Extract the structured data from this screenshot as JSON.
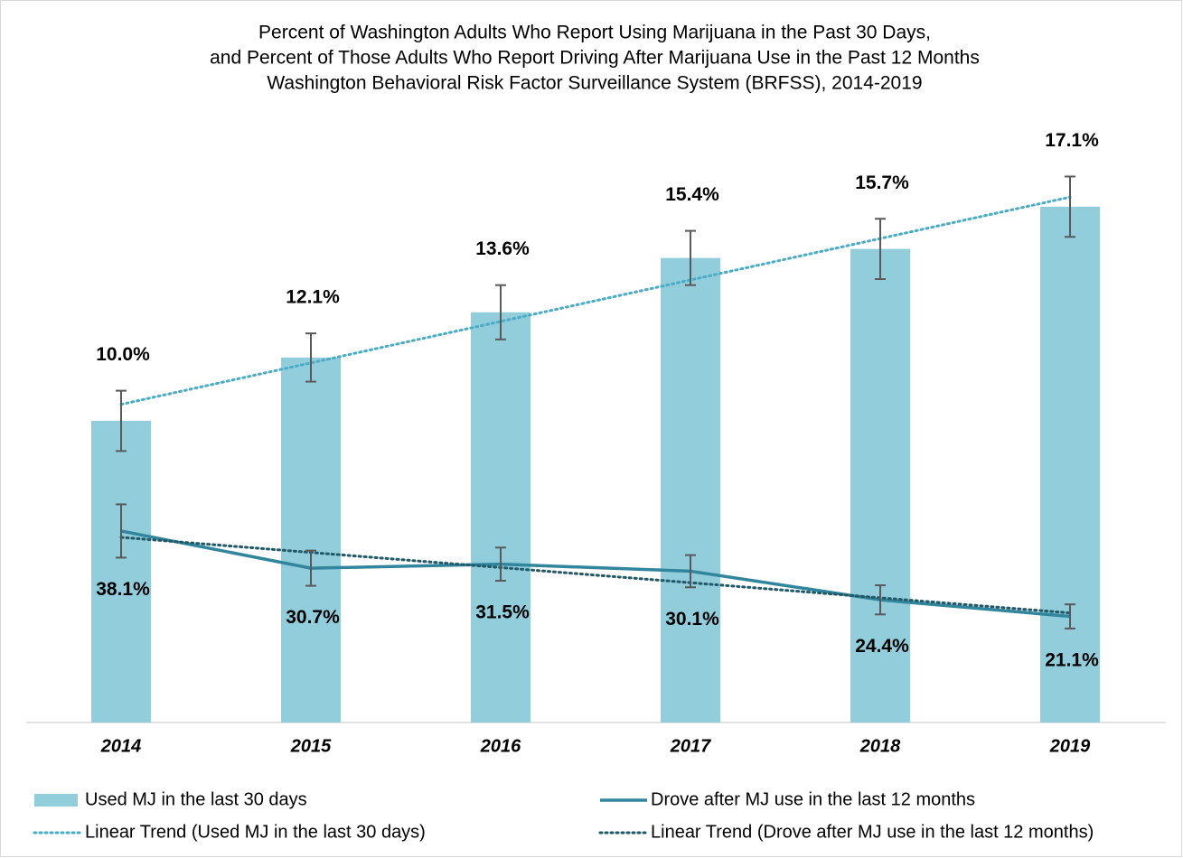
{
  "chart_data": {
    "type": "bar_line",
    "title": [
      "Percent of Washington Adults Who Report Using Marijuana in the Past 30 Days,",
      "and Percent of Those Adults Who Report Driving After Marijuana Use in the Past 12 Months",
      "Washington Behavioral Risk Factor Surveillance System (BRFSS), 2014-2019"
    ],
    "categories": [
      "2014",
      "2015",
      "2016",
      "2017",
      "2018",
      "2019"
    ],
    "series": [
      {
        "name": "Used MJ in the last 30 days",
        "type": "bar",
        "color": "#92cddc",
        "axis": "y",
        "values": [
          10.0,
          12.1,
          13.6,
          15.4,
          15.7,
          17.1
        ],
        "errors": [
          1.0,
          0.8,
          0.9,
          0.9,
          1.0,
          1.0
        ],
        "value_labels": [
          "10.0%",
          "12.1%",
          "13.6%",
          "15.4%",
          "15.7%",
          "17.1%"
        ]
      },
      {
        "name": "Drove after MJ use in the last 12 months",
        "type": "line",
        "color": "#31859c",
        "axis": "y2",
        "values": [
          38.1,
          30.7,
          31.5,
          30.1,
          24.4,
          21.1
        ],
        "errors": [
          5.3,
          3.5,
          3.3,
          3.2,
          2.9,
          2.4
        ],
        "value_labels": [
          "38.1%",
          "30.7%",
          "31.5%",
          "30.1%",
          "24.4%",
          "21.1%"
        ]
      }
    ],
    "trendlines": [
      {
        "name": "Linear Trend (Used MJ in the last 30 days)",
        "series": 0,
        "color": "#4bacc6"
      },
      {
        "name": "Linear Trend (Drove after MJ use in the last 12 months)",
        "series": 1,
        "color": "#215968"
      }
    ],
    "ylim": [
      0,
      20
    ],
    "y2lim": [
      0,
      120
    ],
    "error_color": "#595959"
  }
}
